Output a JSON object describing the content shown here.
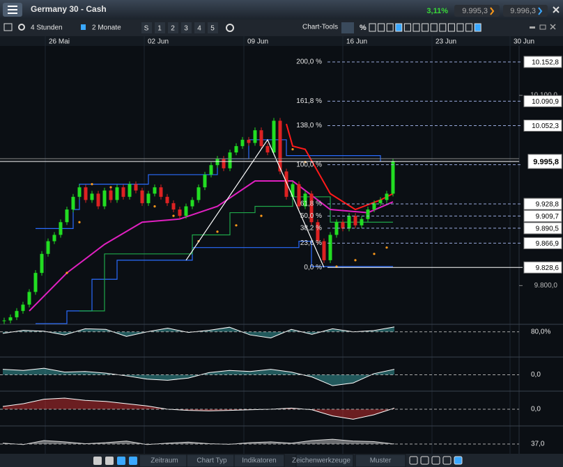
{
  "header": {
    "title": "Germany 30 - Cash",
    "change": "3,11%",
    "bid": "9.995,3",
    "ask": "9.996,3"
  },
  "toolbar": {
    "interval": "4 Stunden",
    "range": "2 Monate",
    "presets": [
      "S",
      "1",
      "2",
      "3",
      "4",
      "5"
    ],
    "tools_label": "Chart-Tools",
    "percent": "%"
  },
  "chart_data": {
    "type": "candlestick",
    "x_labels": [
      "26 Mai",
      "02 Jun",
      "09 Jun",
      "16 Jun",
      "23 Jun",
      "30 Jun"
    ],
    "values": [
      9745,
      9750,
      9760,
      9770,
      9790,
      9820,
      9850,
      9870,
      9880,
      9900,
      9920,
      9940,
      9955,
      9935,
      9945,
      9925,
      9950,
      9935,
      9955,
      9940,
      9960,
      9950,
      9930,
      9945,
      9955,
      9940,
      9930,
      9920,
      9910,
      9925,
      9935,
      9955,
      9975,
      9990,
      10000,
      9985,
      10010,
      10020,
      10030,
      10025,
      10045,
      10020,
      10010,
      10060,
      9980,
      9940,
      9960,
      9925,
      9945,
      9900,
      9870,
      9840,
      9880,
      9900,
      9890,
      9910,
      9895,
      9905,
      9920,
      9930,
      9935,
      9945,
      9995.8
    ],
    "up_color": "#22dd22",
    "down_color": "#dd2222",
    "ylim": [
      9740,
      10178
    ],
    "yticks": [
      {
        "value": 9800,
        "label": "9.800,0"
      },
      {
        "value": 10100,
        "label": "10.100,0"
      }
    ],
    "current": {
      "value": 9995.8,
      "label": "9.995,8"
    },
    "fibonacci": [
      {
        "label": "200,0 %",
        "value": 10152.8,
        "price": "10.152,8"
      },
      {
        "label": "161,8 %",
        "value": 10090.9,
        "price": "10.090,9"
      },
      {
        "label": "138,0 %",
        "value": 10052.3,
        "price": "10.052,3"
      },
      {
        "label": "100,0 %",
        "value": 9990.7
      },
      {
        "label": "61,8 %",
        "value": 9928.8,
        "price": "9.928,8"
      },
      {
        "label": "50,0 %",
        "value": 9909.7,
        "price": "9.909,7"
      },
      {
        "label": "38,2 %",
        "value": 9890.5,
        "price": "9.890,5"
      },
      {
        "label": "23,6 %",
        "value": 9866.9,
        "price": "9.866,9"
      },
      {
        "label": "0,0 %",
        "value": 9828.6,
        "price": "9.828,6"
      }
    ],
    "fib_trend": {
      "x": [
        29,
        42,
        51
      ],
      "values": [
        9840,
        10030,
        9828.6
      ]
    },
    "overlays": [
      {
        "color": "#2a6cff",
        "step": true,
        "x": [
          5,
          11,
          12,
          22,
          23,
          33,
          34,
          38,
          39,
          44,
          45,
          58,
          60
        ],
        "values": [
          9890,
          9920,
          9960,
          9960,
          9975,
          9975,
          10000,
          10000,
          10030,
          10030,
          10005,
          10005,
          9995.8
        ]
      },
      {
        "color": "#2a6cff",
        "step": true,
        "x": [
          5,
          10,
          14,
          18,
          29,
          30,
          45,
          47,
          49,
          62
        ],
        "values": [
          9740,
          9760,
          9810,
          9840,
          9840,
          9860,
          9860,
          9870,
          9830,
          9830
        ]
      },
      {
        "color": "#1fa84a",
        "step": true,
        "x": [
          12,
          16,
          22,
          30,
          36,
          40,
          46,
          52,
          62
        ],
        "values": [
          9760,
          9850,
          9850,
          9880,
          9915,
          9925,
          9940,
          9900,
          9900
        ]
      },
      {
        "color": "#e020c0",
        "x": [
          4,
          10,
          16,
          22,
          28,
          34,
          40,
          46,
          52,
          58,
          62
        ],
        "values": [
          9760,
          9820,
          9865,
          9900,
          9905,
          9925,
          9965,
          9965,
          9920,
          9915,
          9932
        ]
      },
      {
        "color": "#ff1a1a",
        "x": [
          45,
          46,
          48,
          52,
          56,
          60,
          62
        ],
        "values": [
          10055,
          10020,
          10015,
          9945,
          9920,
          9935,
          9945
        ]
      }
    ],
    "sar": {
      "color": "#ff9a1a",
      "x": [
        10,
        12,
        14,
        17,
        20,
        24,
        27,
        31,
        34,
        37,
        41,
        44,
        46,
        48,
        53,
        56,
        59,
        61
      ],
      "values": [
        9820,
        9900,
        9960,
        9955,
        9950,
        9925,
        9910,
        9870,
        9885,
        9895,
        9910,
        10025,
        10015,
        9995,
        9830,
        9840,
        9850,
        9860
      ]
    },
    "panels": [
      {
        "ylim": [
          0,
          100
        ],
        "level": {
          "value": 80,
          "label": "80,0%"
        },
        "color": "#3fb3b3",
        "values": [
          75,
          85,
          82,
          70,
          90,
          88,
          65,
          80,
          92,
          78,
          85,
          95,
          70,
          60,
          88,
          72,
          90,
          80,
          84,
          96
        ]
      },
      {
        "ylim": [
          -30,
          30
        ],
        "level": {
          "value": 0,
          "label": "0,0"
        },
        "color": "#3fb3b3",
        "values": [
          10,
          8,
          12,
          5,
          6,
          3,
          -2,
          -8,
          -10,
          -6,
          4,
          8,
          6,
          10,
          5,
          -4,
          -20,
          -15,
          2,
          10
        ]
      },
      {
        "ylim": [
          -30,
          30
        ],
        "level": {
          "value": 0,
          "label": "0,0"
        },
        "color": "#e03030",
        "values": [
          5,
          10,
          18,
          20,
          16,
          14,
          10,
          6,
          0,
          -2,
          -3,
          -2,
          -1,
          0,
          2,
          -1,
          -12,
          -18,
          -10,
          2
        ]
      },
      {
        "ylim": [
          0,
          100
        ],
        "level": {
          "value": 37,
          "label": "37,0"
        },
        "color": "#dddddd",
        "values": [
          40,
          35,
          50,
          45,
          38,
          42,
          48,
          35,
          40,
          44,
          38,
          36,
          42,
          45,
          40,
          50,
          55,
          48,
          46,
          37
        ]
      }
    ]
  },
  "bottom_toolbar": {
    "tabs": [
      "Zeitraum",
      "Chart Typ",
      "Indikatoren",
      "Zeichenwerkzeuge",
      "Muster"
    ]
  }
}
